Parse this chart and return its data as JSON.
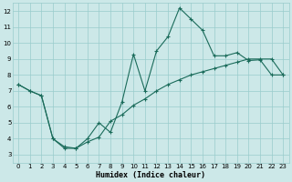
{
  "xlabel": "Humidex (Indice chaleur)",
  "background_color": "#cce8e8",
  "grid_color": "#99cccc",
  "line_color": "#1a6b5a",
  "xlim": [
    -0.5,
    23.5
  ],
  "ylim": [
    2.5,
    12.5
  ],
  "xticks": [
    0,
    1,
    2,
    3,
    4,
    5,
    6,
    7,
    8,
    9,
    10,
    11,
    12,
    13,
    14,
    15,
    16,
    17,
    18,
    19,
    20,
    21,
    22,
    23
  ],
  "yticks": [
    3,
    4,
    5,
    6,
    7,
    8,
    9,
    10,
    11,
    12
  ],
  "line1_x": [
    0,
    1,
    2,
    3,
    4,
    5,
    6,
    7,
    8,
    9,
    10,
    11,
    12,
    13,
    14,
    15,
    16,
    17,
    18,
    19,
    20,
    21,
    22,
    23
  ],
  "line1_y": [
    7.4,
    7.0,
    6.7,
    4.0,
    3.5,
    3.4,
    4.0,
    5.0,
    4.4,
    6.3,
    9.3,
    7.0,
    9.5,
    10.4,
    12.2,
    11.5,
    10.8,
    9.2,
    9.2,
    9.4,
    8.9,
    8.95,
    8.0,
    8.0
  ],
  "line2_x": [
    0,
    1,
    2,
    3,
    4,
    5,
    6,
    7,
    8,
    9,
    10,
    11,
    12,
    13,
    14,
    15,
    16,
    17,
    18,
    19,
    20,
    21,
    22,
    23
  ],
  "line2_y": [
    7.4,
    7.0,
    6.7,
    4.0,
    3.4,
    3.4,
    3.8,
    4.1,
    5.1,
    5.5,
    6.1,
    6.5,
    7.0,
    7.4,
    7.7,
    8.0,
    8.2,
    8.4,
    8.6,
    8.8,
    9.0,
    9.0,
    9.0,
    8.0
  ]
}
